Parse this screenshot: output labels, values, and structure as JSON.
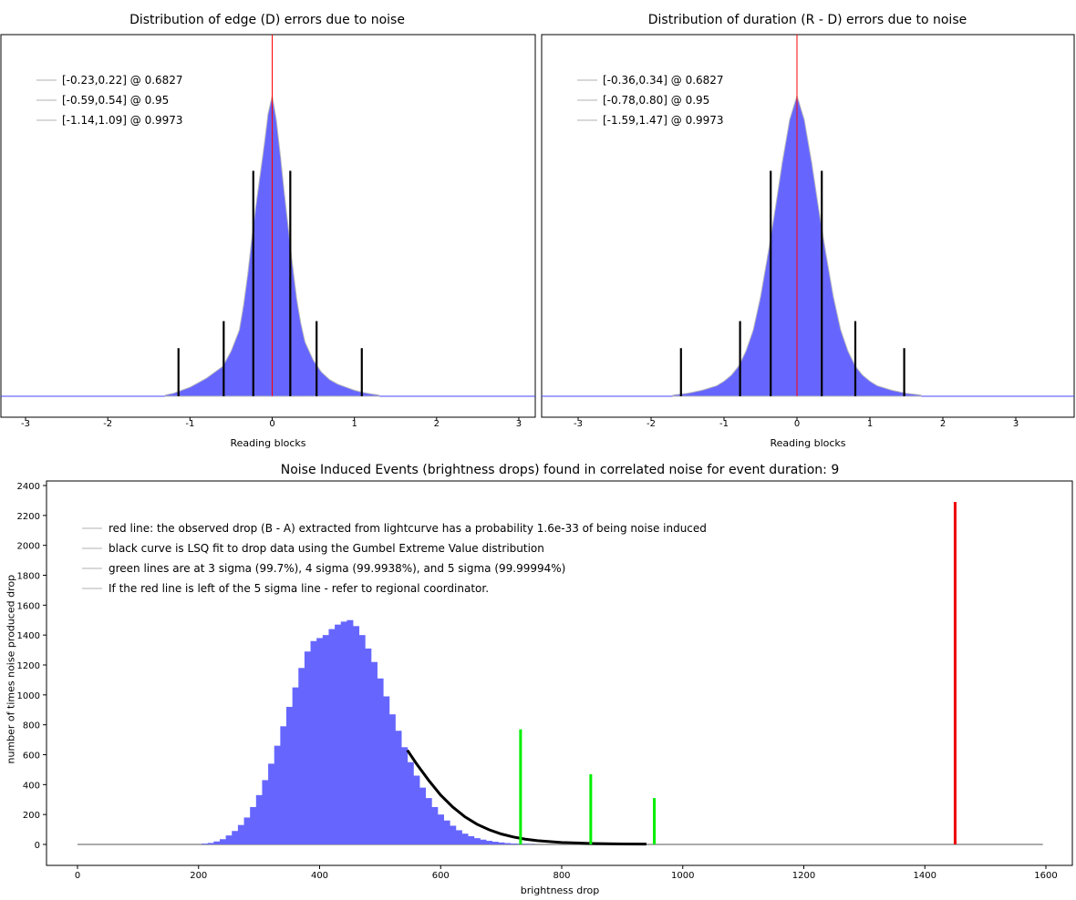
{
  "chart_data": [
    {
      "type": "bar",
      "title": "Distribution of edge (D) errors due to noise",
      "xlabel": "Reading blocks",
      "ylabel": "",
      "xlim": [
        -3.3,
        3.2
      ],
      "xticks": [
        -3,
        -2,
        -1,
        0,
        1,
        2,
        3
      ],
      "yticks_visible": false,
      "grid": false,
      "legend": {
        "placement": "top-left",
        "entries": [
          "[-0.23,0.22] @ 0.6827",
          "[-0.59,0.54] @ 0.95",
          "[-1.14,1.09] @ 0.9973"
        ]
      },
      "histogram": {
        "color": "#6666ff",
        "bins": [
          [
            -1.3,
            0.004
          ],
          [
            -1.2,
            0.01
          ],
          [
            -1.1,
            0.02
          ],
          [
            -1.0,
            0.03
          ],
          [
            -0.9,
            0.045
          ],
          [
            -0.8,
            0.06
          ],
          [
            -0.7,
            0.08
          ],
          [
            -0.6,
            0.1
          ],
          [
            -0.5,
            0.15
          ],
          [
            -0.4,
            0.22
          ],
          [
            -0.35,
            0.3
          ],
          [
            -0.3,
            0.4
          ],
          [
            -0.25,
            0.52
          ],
          [
            -0.2,
            0.63
          ],
          [
            -0.15,
            0.73
          ],
          [
            -0.1,
            0.83
          ],
          [
            -0.05,
            0.94
          ],
          [
            0.0,
            1.0
          ],
          [
            0.05,
            0.92
          ],
          [
            0.1,
            0.8
          ],
          [
            0.15,
            0.67
          ],
          [
            0.2,
            0.55
          ],
          [
            0.25,
            0.43
          ],
          [
            0.3,
            0.32
          ],
          [
            0.35,
            0.24
          ],
          [
            0.4,
            0.18
          ],
          [
            0.5,
            0.12
          ],
          [
            0.6,
            0.08
          ],
          [
            0.7,
            0.055
          ],
          [
            0.8,
            0.04
          ],
          [
            0.9,
            0.03
          ],
          [
            1.0,
            0.02
          ],
          [
            1.1,
            0.013
          ],
          [
            1.2,
            0.008
          ],
          [
            1.3,
            0.004
          ]
        ]
      },
      "marker_lines": [
        {
          "x": -1.14,
          "height": 0.16,
          "color": "#000000"
        },
        {
          "x": -0.59,
          "height": 0.25,
          "color": "#000000"
        },
        {
          "x": -0.23,
          "height": 0.75,
          "color": "#000000"
        },
        {
          "x": 0.22,
          "height": 0.75,
          "color": "#000000"
        },
        {
          "x": 0.54,
          "height": 0.25,
          "color": "#000000"
        },
        {
          "x": 1.09,
          "height": 0.16,
          "color": "#000000"
        },
        {
          "x": 0.0,
          "height": 1.08,
          "color": "#ff0000"
        }
      ]
    },
    {
      "type": "bar",
      "title": "Distribution of duration (R - D) errors due to noise",
      "xlabel": "Reading blocks",
      "ylabel": "",
      "xlim": [
        -3.5,
        3.8
      ],
      "xticks": [
        -3,
        -2,
        -1,
        0,
        1,
        2,
        3
      ],
      "yticks_visible": false,
      "grid": false,
      "legend": {
        "placement": "top-left",
        "entries": [
          "[-0.36,0.34] @ 0.6827",
          "[-0.78,0.80] @ 0.95",
          "[-1.59,1.47] @ 0.9973"
        ]
      },
      "histogram": {
        "color": "#6666ff",
        "bins": [
          [
            -1.7,
            0.004
          ],
          [
            -1.5,
            0.01
          ],
          [
            -1.3,
            0.02
          ],
          [
            -1.1,
            0.035
          ],
          [
            -1.0,
            0.05
          ],
          [
            -0.9,
            0.07
          ],
          [
            -0.8,
            0.1
          ],
          [
            -0.7,
            0.15
          ],
          [
            -0.6,
            0.22
          ],
          [
            -0.5,
            0.33
          ],
          [
            -0.4,
            0.47
          ],
          [
            -0.3,
            0.62
          ],
          [
            -0.2,
            0.78
          ],
          [
            -0.1,
            0.92
          ],
          [
            0.0,
            1.0
          ],
          [
            0.1,
            0.92
          ],
          [
            0.2,
            0.78
          ],
          [
            0.3,
            0.62
          ],
          [
            0.4,
            0.47
          ],
          [
            0.5,
            0.33
          ],
          [
            0.6,
            0.22
          ],
          [
            0.7,
            0.15
          ],
          [
            0.8,
            0.1
          ],
          [
            0.9,
            0.07
          ],
          [
            1.0,
            0.05
          ],
          [
            1.1,
            0.035
          ],
          [
            1.3,
            0.02
          ],
          [
            1.5,
            0.01
          ],
          [
            1.7,
            0.004
          ]
        ]
      },
      "marker_lines": [
        {
          "x": -1.59,
          "height": 0.16,
          "color": "#000000"
        },
        {
          "x": -0.78,
          "height": 0.25,
          "color": "#000000"
        },
        {
          "x": -0.36,
          "height": 0.75,
          "color": "#000000"
        },
        {
          "x": 0.34,
          "height": 0.75,
          "color": "#000000"
        },
        {
          "x": 0.8,
          "height": 0.25,
          "color": "#000000"
        },
        {
          "x": 1.47,
          "height": 0.16,
          "color": "#000000"
        },
        {
          "x": 0.0,
          "height": 1.08,
          "color": "#ff0000"
        }
      ]
    },
    {
      "type": "bar",
      "title": "Noise Induced Events (brightness drops) found in correlated noise for event duration: 9",
      "xlabel": "brightness drop",
      "ylabel": "number of times noise produced drop",
      "xlim": [
        -50,
        1620
      ],
      "ylim": [
        -80,
        2400
      ],
      "xticks": [
        0,
        200,
        400,
        600,
        800,
        1000,
        1200,
        1400,
        1600
      ],
      "yticks": [
        0,
        200,
        400,
        600,
        800,
        1000,
        1200,
        1400,
        1600,
        1800,
        2000,
        2200,
        2400
      ],
      "grid": false,
      "legend": {
        "placement": "top-left",
        "entries": [
          "red line: the observed drop (B - A) extracted from lightcurve has a probability 1.6e-33 of being noise induced",
          "black curve is LSQ fit to drop data using the Gumbel Extreme Value distribution",
          "green lines are at 3 sigma (99.7%), 4 sigma (99.9938%), and 5 sigma (99.99994%)",
          "If the red line is left of the 5 sigma line - refer to regional coordinator."
        ]
      },
      "histogram": {
        "color": "#6666ff",
        "bin_width": 10,
        "bins": [
          [
            210,
            5
          ],
          [
            220,
            10
          ],
          [
            230,
            20
          ],
          [
            240,
            35
          ],
          [
            250,
            60
          ],
          [
            260,
            90
          ],
          [
            270,
            130
          ],
          [
            280,
            180
          ],
          [
            290,
            250
          ],
          [
            300,
            330
          ],
          [
            310,
            430
          ],
          [
            320,
            540
          ],
          [
            330,
            660
          ],
          [
            340,
            790
          ],
          [
            350,
            920
          ],
          [
            360,
            1050
          ],
          [
            370,
            1180
          ],
          [
            380,
            1290
          ],
          [
            390,
            1360
          ],
          [
            400,
            1380
          ],
          [
            410,
            1400
          ],
          [
            420,
            1440
          ],
          [
            430,
            1470
          ],
          [
            440,
            1490
          ],
          [
            450,
            1500
          ],
          [
            460,
            1460
          ],
          [
            470,
            1400
          ],
          [
            480,
            1310
          ],
          [
            490,
            1220
          ],
          [
            500,
            1110
          ],
          [
            510,
            990
          ],
          [
            520,
            870
          ],
          [
            530,
            760
          ],
          [
            540,
            650
          ],
          [
            550,
            550
          ],
          [
            560,
            460
          ],
          [
            570,
            380
          ],
          [
            580,
            310
          ],
          [
            590,
            250
          ],
          [
            600,
            200
          ],
          [
            610,
            160
          ],
          [
            620,
            125
          ],
          [
            630,
            95
          ],
          [
            640,
            72
          ],
          [
            650,
            55
          ],
          [
            660,
            42
          ],
          [
            670,
            32
          ],
          [
            680,
            24
          ],
          [
            690,
            18
          ],
          [
            700,
            13
          ],
          [
            710,
            9
          ],
          [
            720,
            6
          ],
          [
            730,
            4
          ],
          [
            740,
            3
          ],
          [
            750,
            2
          ]
        ]
      },
      "fit_curve": {
        "color": "#000000",
        "points": [
          [
            545,
            630
          ],
          [
            560,
            540
          ],
          [
            580,
            430
          ],
          [
            600,
            330
          ],
          [
            620,
            250
          ],
          [
            640,
            185
          ],
          [
            660,
            135
          ],
          [
            680,
            98
          ],
          [
            700,
            70
          ],
          [
            720,
            50
          ],
          [
            740,
            35
          ],
          [
            760,
            25
          ],
          [
            800,
            13
          ],
          [
            850,
            6
          ],
          [
            900,
            3
          ],
          [
            940,
            2
          ]
        ]
      },
      "baseline": {
        "from": 0,
        "to": 1595,
        "color": "#aaaaaa"
      },
      "marker_lines": [
        {
          "x": 732,
          "height": 770,
          "color": "#00ee00",
          "label": "3 sigma"
        },
        {
          "x": 848,
          "height": 470,
          "color": "#00ee00",
          "label": "4 sigma"
        },
        {
          "x": 953,
          "height": 310,
          "color": "#00ee00",
          "label": "5 sigma"
        },
        {
          "x": 1450,
          "height": 2290,
          "color": "#ee0000",
          "label": "observed drop"
        }
      ]
    }
  ]
}
